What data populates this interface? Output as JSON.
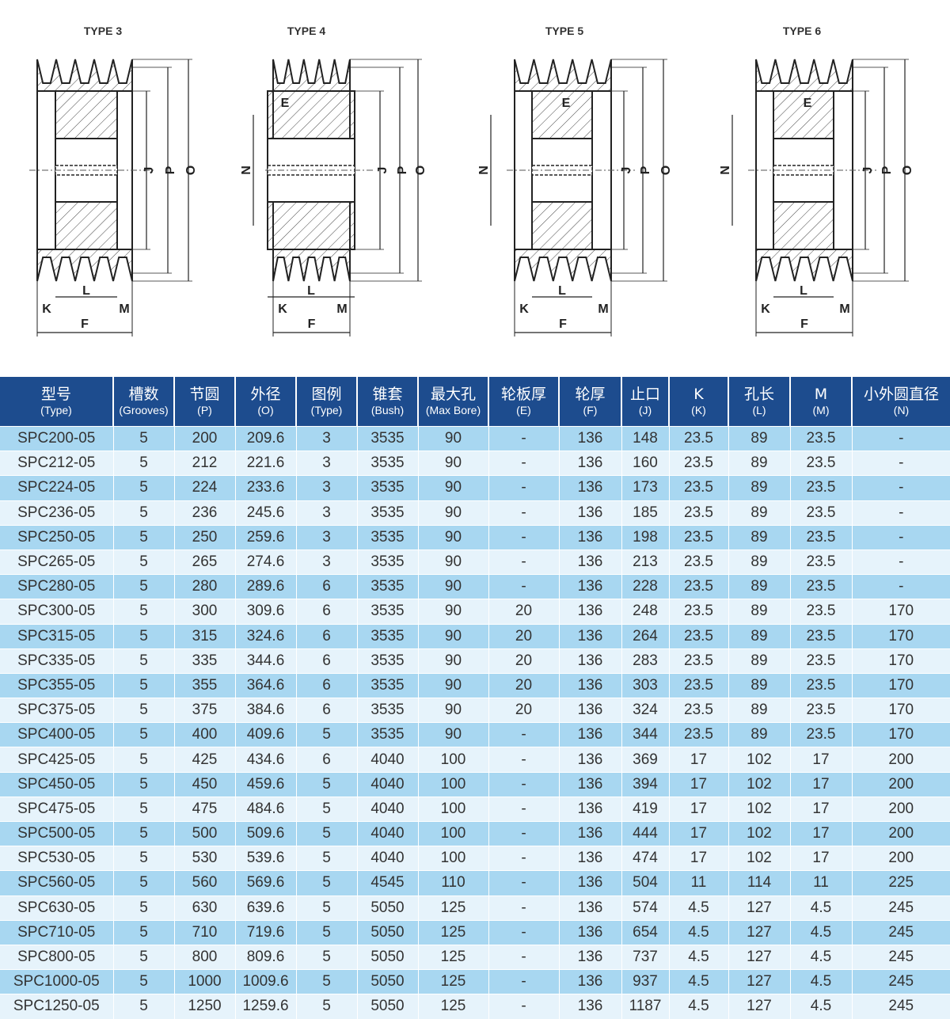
{
  "diagrams": [
    {
      "title": "TYPE 3",
      "labels": [
        "J",
        "P",
        "O",
        "K",
        "L",
        "M",
        "F"
      ]
    },
    {
      "title": "TYPE 4",
      "labels": [
        "E",
        "N",
        "J",
        "P",
        "O",
        "K",
        "M",
        "F",
        "L"
      ]
    },
    {
      "title": "TYPE 5",
      "labels": [
        "E",
        "N",
        "J",
        "P",
        "O",
        "K",
        "L",
        "M",
        "F"
      ]
    },
    {
      "title": "TYPE 6",
      "labels": [
        "E",
        "N",
        "J",
        "P",
        "O",
        "K",
        "L",
        "M",
        "F"
      ]
    }
  ],
  "table": {
    "colors": {
      "header": "#1d4c8e",
      "row_odd": "#a8d7f1",
      "row_even": "#e6f3fb"
    },
    "headers": [
      {
        "cn": "型号",
        "en": "(Type)"
      },
      {
        "cn": "槽数",
        "en": "(Grooves)"
      },
      {
        "cn": "节圆",
        "en": "(P)"
      },
      {
        "cn": "外径",
        "en": "(O)"
      },
      {
        "cn": "图例",
        "en": "(Type)"
      },
      {
        "cn": "锥套",
        "en": "(Bush)"
      },
      {
        "cn": "最大孔",
        "en": "(Max Bore)"
      },
      {
        "cn": "轮板厚",
        "en": "(E)"
      },
      {
        "cn": "轮厚",
        "en": "(F)"
      },
      {
        "cn": "止口",
        "en": "(J)"
      },
      {
        "cn": "K",
        "en": "(K)"
      },
      {
        "cn": "孔长",
        "en": "(L)"
      },
      {
        "cn": "M",
        "en": "(M)"
      },
      {
        "cn": "小外圆直径",
        "en": "(N)"
      }
    ],
    "rows": [
      [
        "SPC200-05",
        "5",
        "200",
        "209.6",
        "3",
        "3535",
        "90",
        "-",
        "136",
        "148",
        "23.5",
        "89",
        "23.5",
        "-"
      ],
      [
        "SPC212-05",
        "5",
        "212",
        "221.6",
        "3",
        "3535",
        "90",
        "-",
        "136",
        "160",
        "23.5",
        "89",
        "23.5",
        "-"
      ],
      [
        "SPC224-05",
        "5",
        "224",
        "233.6",
        "3",
        "3535",
        "90",
        "-",
        "136",
        "173",
        "23.5",
        "89",
        "23.5",
        "-"
      ],
      [
        "SPC236-05",
        "5",
        "236",
        "245.6",
        "3",
        "3535",
        "90",
        "-",
        "136",
        "185",
        "23.5",
        "89",
        "23.5",
        "-"
      ],
      [
        "SPC250-05",
        "5",
        "250",
        "259.6",
        "3",
        "3535",
        "90",
        "-",
        "136",
        "198",
        "23.5",
        "89",
        "23.5",
        "-"
      ],
      [
        "SPC265-05",
        "5",
        "265",
        "274.6",
        "3",
        "3535",
        "90",
        "-",
        "136",
        "213",
        "23.5",
        "89",
        "23.5",
        "-"
      ],
      [
        "SPC280-05",
        "5",
        "280",
        "289.6",
        "6",
        "3535",
        "90",
        "-",
        "136",
        "228",
        "23.5",
        "89",
        "23.5",
        "-"
      ],
      [
        "SPC300-05",
        "5",
        "300",
        "309.6",
        "6",
        "3535",
        "90",
        "20",
        "136",
        "248",
        "23.5",
        "89",
        "23.5",
        "170"
      ],
      [
        "SPC315-05",
        "5",
        "315",
        "324.6",
        "6",
        "3535",
        "90",
        "20",
        "136",
        "264",
        "23.5",
        "89",
        "23.5",
        "170"
      ],
      [
        "SPC335-05",
        "5",
        "335",
        "344.6",
        "6",
        "3535",
        "90",
        "20",
        "136",
        "283",
        "23.5",
        "89",
        "23.5",
        "170"
      ],
      [
        "SPC355-05",
        "5",
        "355",
        "364.6",
        "6",
        "3535",
        "90",
        "20",
        "136",
        "303",
        "23.5",
        "89",
        "23.5",
        "170"
      ],
      [
        "SPC375-05",
        "5",
        "375",
        "384.6",
        "6",
        "3535",
        "90",
        "20",
        "136",
        "324",
        "23.5",
        "89",
        "23.5",
        "170"
      ],
      [
        "SPC400-05",
        "5",
        "400",
        "409.6",
        "5",
        "3535",
        "90",
        "-",
        "136",
        "344",
        "23.5",
        "89",
        "23.5",
        "170"
      ],
      [
        "SPC425-05",
        "5",
        "425",
        "434.6",
        "6",
        "4040",
        "100",
        "-",
        "136",
        "369",
        "17",
        "102",
        "17",
        "200"
      ],
      [
        "SPC450-05",
        "5",
        "450",
        "459.6",
        "5",
        "4040",
        "100",
        "-",
        "136",
        "394",
        "17",
        "102",
        "17",
        "200"
      ],
      [
        "SPC475-05",
        "5",
        "475",
        "484.6",
        "5",
        "4040",
        "100",
        "-",
        "136",
        "419",
        "17",
        "102",
        "17",
        "200"
      ],
      [
        "SPC500-05",
        "5",
        "500",
        "509.6",
        "5",
        "4040",
        "100",
        "-",
        "136",
        "444",
        "17",
        "102",
        "17",
        "200"
      ],
      [
        "SPC530-05",
        "5",
        "530",
        "539.6",
        "5",
        "4040",
        "100",
        "-",
        "136",
        "474",
        "17",
        "102",
        "17",
        "200"
      ],
      [
        "SPC560-05",
        "5",
        "560",
        "569.6",
        "5",
        "4545",
        "110",
        "-",
        "136",
        "504",
        "11",
        "114",
        "11",
        "225"
      ],
      [
        "SPC630-05",
        "5",
        "630",
        "639.6",
        "5",
        "5050",
        "125",
        "-",
        "136",
        "574",
        "4.5",
        "127",
        "4.5",
        "245"
      ],
      [
        "SPC710-05",
        "5",
        "710",
        "719.6",
        "5",
        "5050",
        "125",
        "-",
        "136",
        "654",
        "4.5",
        "127",
        "4.5",
        "245"
      ],
      [
        "SPC800-05",
        "5",
        "800",
        "809.6",
        "5",
        "5050",
        "125",
        "-",
        "136",
        "737",
        "4.5",
        "127",
        "4.5",
        "245"
      ],
      [
        "SPC1000-05",
        "5",
        "1000",
        "1009.6",
        "5",
        "5050",
        "125",
        "-",
        "136",
        "937",
        "4.5",
        "127",
        "4.5",
        "245"
      ],
      [
        "SPC1250-05",
        "5",
        "1250",
        "1259.6",
        "5",
        "5050",
        "125",
        "-",
        "136",
        "1187",
        "4.5",
        "127",
        "4.5",
        "245"
      ]
    ]
  }
}
